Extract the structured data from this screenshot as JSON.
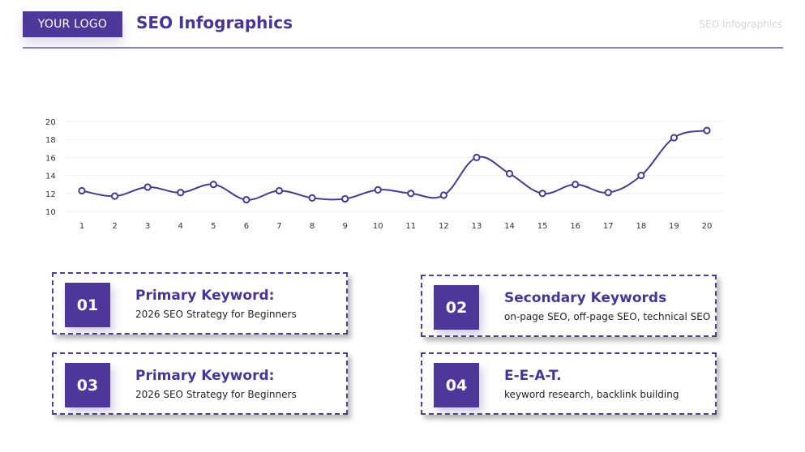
{
  "header": {
    "logo_label": "YOUR LOGO",
    "title": "SEO Infographics",
    "right_title": "SEO Infographics"
  },
  "colors": {
    "accent": "#4f3799",
    "title": "#4a3590",
    "line": "#4b3a8c",
    "rule": "#8d84b5",
    "grid": "#f0f0f0"
  },
  "chart_data": {
    "type": "line",
    "title": "",
    "xlabel": "",
    "ylabel": "",
    "x": [
      1,
      2,
      3,
      4,
      5,
      6,
      7,
      8,
      9,
      10,
      11,
      12,
      13,
      14,
      15,
      16,
      17,
      18,
      19,
      20
    ],
    "values": [
      12.3,
      11.7,
      12.7,
      12.1,
      13.0,
      11.3,
      12.3,
      11.5,
      11.4,
      12.4,
      12.0,
      11.8,
      16.0,
      14.2,
      12.0,
      13.0,
      12.1,
      14.0,
      18.2,
      19.0
    ],
    "y_ticks": [
      10,
      12,
      14,
      16,
      18,
      20
    ],
    "ylim": [
      10,
      20
    ],
    "grid": true,
    "smooth": true,
    "markers": "hollow-circle",
    "legend": null
  },
  "cards": [
    {
      "number": "01",
      "title": "Primary Keyword:",
      "subtitle": "2026 SEO Strategy for Beginners"
    },
    {
      "number": "02",
      "title": "Secondary Keywords",
      "subtitle": "on-page SEO, off-page SEO, technical SEO"
    },
    {
      "number": "03",
      "title": "Primary Keyword:",
      "subtitle": "2026 SEO Strategy for Beginners"
    },
    {
      "number": "04",
      "title": "E-E-A-T.",
      "subtitle": "keyword research, backlink building"
    }
  ]
}
